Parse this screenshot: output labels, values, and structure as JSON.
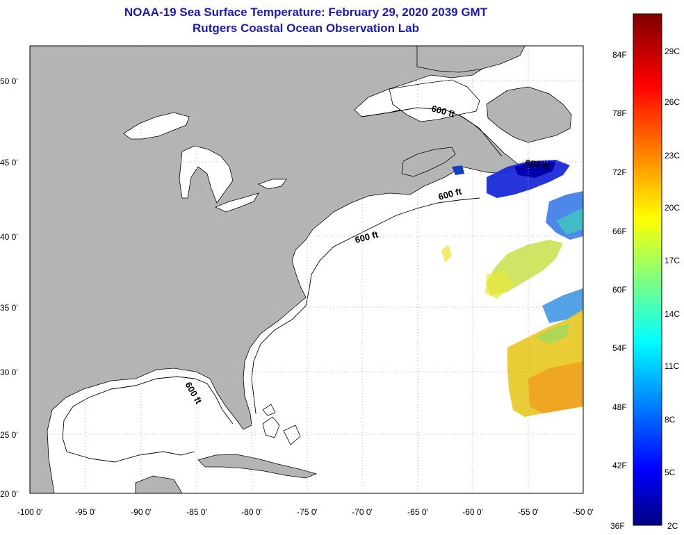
{
  "title": {
    "line1": "NOAA-19 Sea Surface Temperature:  February 29, 2020 2039 GMT",
    "line2": "Rutgers Coastal Ocean Observation Lab"
  },
  "map": {
    "lon_range": [
      -100,
      -50
    ],
    "lat_range": [
      20,
      52
    ],
    "lat_ticks": [
      {
        "value": 50,
        "label": "50 0'"
      },
      {
        "value": 45,
        "label": "45 0'"
      },
      {
        "value": 40,
        "label": "40 0'"
      },
      {
        "value": 35,
        "label": "35 0'"
      },
      {
        "value": 30,
        "label": "30 0'"
      },
      {
        "value": 25,
        "label": "25 0'"
      },
      {
        "value": 20,
        "label": "20 0'"
      }
    ],
    "lon_ticks": [
      {
        "value": -100,
        "label": "-100 0'"
      },
      {
        "value": -95,
        "label": "-95 0'"
      },
      {
        "value": -90,
        "label": "-90 0'"
      },
      {
        "value": -85,
        "label": "-85 0'"
      },
      {
        "value": -80,
        "label": "-80 0'"
      },
      {
        "value": -75,
        "label": "-75 0'"
      },
      {
        "value": -70,
        "label": "-70 0'"
      },
      {
        "value": -65,
        "label": "-65 0'"
      },
      {
        "value": -60,
        "label": "-60 0'"
      },
      {
        "value": -55,
        "label": "-55 0'"
      },
      {
        "value": -50,
        "label": "-50 0'"
      }
    ],
    "contour_labels": [
      "600 ft",
      "600 ft",
      "600 ft",
      "600 ft",
      "600 ft"
    ]
  },
  "colorbar": {
    "fahrenheit_labels": [
      "84F",
      "78F",
      "72F",
      "66F",
      "60F",
      "54F",
      "48F",
      "42F",
      "36F"
    ],
    "celsius_labels": [
      "29C",
      "26C",
      "23C",
      "20C",
      "17C",
      "14C",
      "11C",
      "8C",
      "5C",
      "2C"
    ]
  },
  "colors": {
    "land": "#b4b4b4",
    "grid": "#b0b0b0",
    "title": "#1a1ab4"
  }
}
